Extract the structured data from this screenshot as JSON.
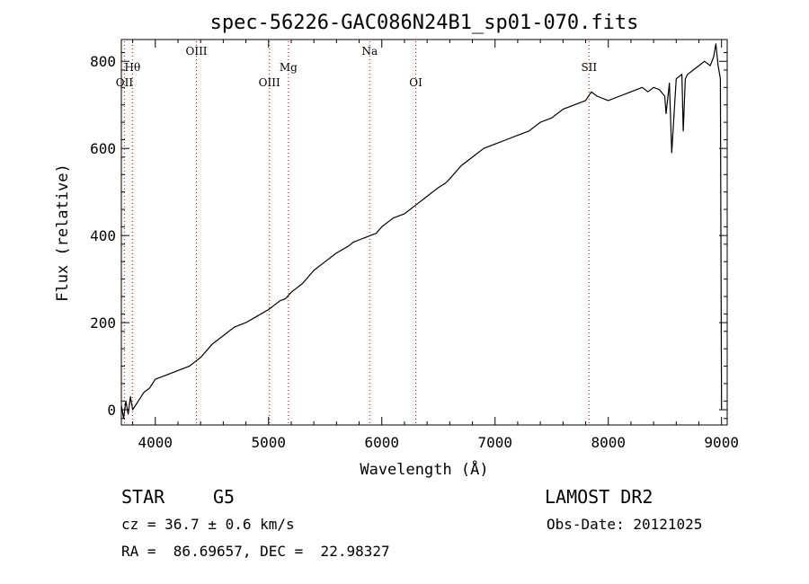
{
  "chart_data": {
    "type": "line",
    "title": "spec-56226-GAC086N24B1_sp01-070.fits",
    "xlabel": "Wavelength (Å)",
    "ylabel": "Flux (relative)",
    "xlim": [
      3700,
      9050
    ],
    "ylim": [
      -35,
      850
    ],
    "xticks": [
      4000,
      5000,
      6000,
      7000,
      8000,
      9000
    ],
    "yticks": [
      0,
      200,
      400,
      600,
      800
    ],
    "line_color": "#000000",
    "marker_color": "#cc0000",
    "spectral_lines": [
      {
        "label": "OII",
        "wavelength": 3727,
        "row": "low"
      },
      {
        "label": "Hθ",
        "wavelength": 3798,
        "row": "mid"
      },
      {
        "label": "OIII",
        "wavelength": 4363,
        "row": "high"
      },
      {
        "label": "OIII",
        "wavelength": 5007,
        "row": "low"
      },
      {
        "label": "Mg",
        "wavelength": 5175,
        "row": "mid"
      },
      {
        "label": "Na",
        "wavelength": 5893,
        "row": "high"
      },
      {
        "label": "OI",
        "wavelength": 6300,
        "row": "low"
      },
      {
        "label": "SII",
        "wavelength": 7830,
        "row": "mid"
      }
    ],
    "series": [
      {
        "x": [
          3700,
          3720,
          3740,
          3760,
          3780,
          3800,
          3850,
          3900,
          3950,
          4000,
          4100,
          4200,
          4300,
          4350,
          4400,
          4500,
          4600,
          4700,
          4800,
          4900,
          5000,
          5050,
          5100,
          5150,
          5200,
          5300,
          5400,
          5500,
          5600,
          5700,
          5750,
          5800,
          5850,
          5900,
          5950,
          6000,
          6100,
          6200,
          6300,
          6400,
          6500,
          6560,
          6600,
          6700,
          6800,
          6900,
          7000,
          7100,
          7200,
          7300,
          7400,
          7500,
          7600,
          7700,
          7800,
          7850,
          7900,
          8000,
          8100,
          8200,
          8300,
          8350,
          8400,
          8450,
          8498,
          8510,
          8540,
          8560,
          8600,
          8650,
          8662,
          8680,
          8700,
          8750,
          8800,
          8850,
          8900,
          8930,
          8950,
          8970,
          8990,
          9000
        ],
        "y": [
          10,
          -20,
          20,
          -10,
          30,
          0,
          20,
          40,
          50,
          70,
          80,
          90,
          100,
          110,
          120,
          150,
          170,
          190,
          200,
          215,
          230,
          240,
          250,
          255,
          270,
          290,
          320,
          340,
          360,
          375,
          385,
          390,
          395,
          400,
          405,
          420,
          440,
          450,
          470,
          490,
          510,
          520,
          530,
          560,
          580,
          600,
          610,
          620,
          630,
          640,
          660,
          670,
          690,
          700,
          710,
          730,
          720,
          710,
          720,
          730,
          740,
          730,
          740,
          735,
          720,
          680,
          750,
          590,
          760,
          770,
          640,
          760,
          770,
          780,
          790,
          800,
          790,
          810,
          840,
          790,
          760,
          0
        ]
      }
    ]
  },
  "info": {
    "object_class": "STAR",
    "subclass": "G5",
    "survey": "LAMOST DR2",
    "cz": "cz = 36.7 ± 0.6 km/s",
    "obs_date": "Obs-Date: 20121025",
    "coords": "RA =  86.69657, DEC =  22.98327"
  }
}
